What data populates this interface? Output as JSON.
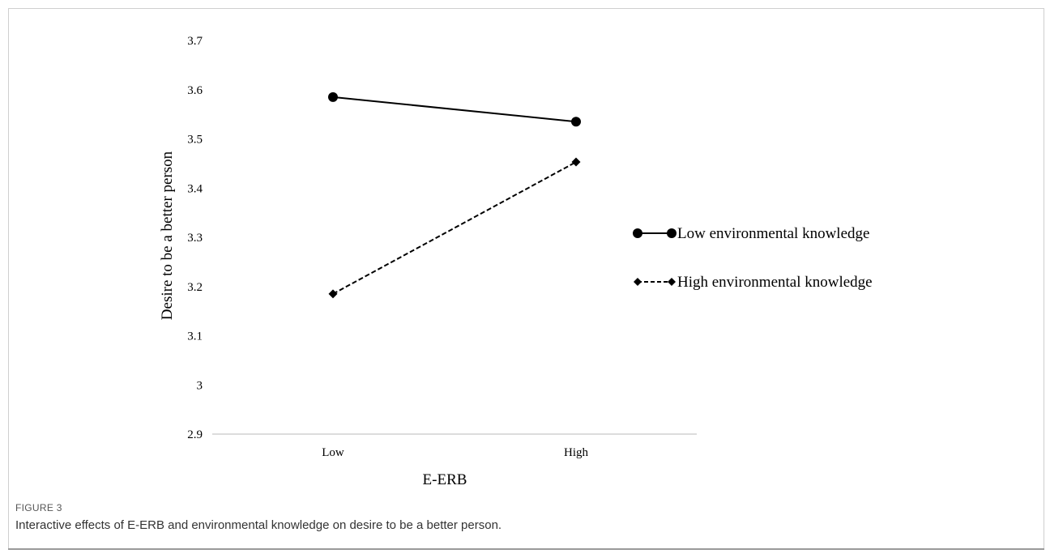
{
  "caption": {
    "label": "FIGURE 3",
    "text": "Interactive effects of E-ERB and environmental knowledge on desire to be a better person."
  },
  "chart_data": {
    "type": "line",
    "title": "",
    "xlabel": "E-ERB",
    "ylabel": "Desire to be a better person",
    "categories": [
      "Low",
      "High"
    ],
    "ylim": [
      2.9,
      3.7
    ],
    "yticks": [
      "2.9",
      "3",
      "3.1",
      "3.2",
      "3.3",
      "3.4",
      "3.5",
      "3.6",
      "3.7"
    ],
    "grid": false,
    "legend_position": "right",
    "series": [
      {
        "name": "Low environmental knowledge",
        "values": [
          3.585,
          3.535
        ],
        "line_style": "solid",
        "marker": "circle",
        "color": "#000000"
      },
      {
        "name": "High environmental knowledge",
        "values": [
          3.185,
          3.453
        ],
        "line_style": "dashed",
        "marker": "diamond",
        "color": "#000000"
      }
    ]
  }
}
